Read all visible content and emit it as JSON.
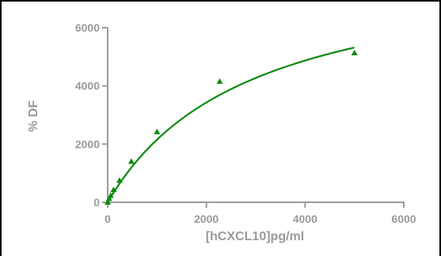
{
  "chart_data": {
    "type": "scatter",
    "title": "",
    "xlabel": "[hCXCL10]pg/ml",
    "ylabel": "% DF",
    "xlim": [
      0,
      6000
    ],
    "ylim": [
      0,
      6000
    ],
    "x_ticks": [
      "0",
      "2000",
      "4000",
      "6000"
    ],
    "y_ticks": [
      "0",
      "2000",
      "4000",
      "6000"
    ],
    "grid": false,
    "legend": "none",
    "series": [
      {
        "marker": "triangle",
        "color": "#0a8a0a",
        "points": [
          {
            "x": 0,
            "y": 0
          },
          {
            "x": 30,
            "y": 130
          },
          {
            "x": 60,
            "y": 230
          },
          {
            "x": 120,
            "y": 430
          },
          {
            "x": 240,
            "y": 750
          },
          {
            "x": 480,
            "y": 1400
          },
          {
            "x": 1000,
            "y": 2420
          },
          {
            "x": 2270,
            "y": 4150
          },
          {
            "x": 5000,
            "y": 5130
          }
        ]
      }
    ],
    "fit_curve": {
      "type": "hyperbolic",
      "color": "#0a8a0a",
      "x_range": [
        0,
        5000
      ],
      "bmax": 8400,
      "kd": 2900
    }
  }
}
